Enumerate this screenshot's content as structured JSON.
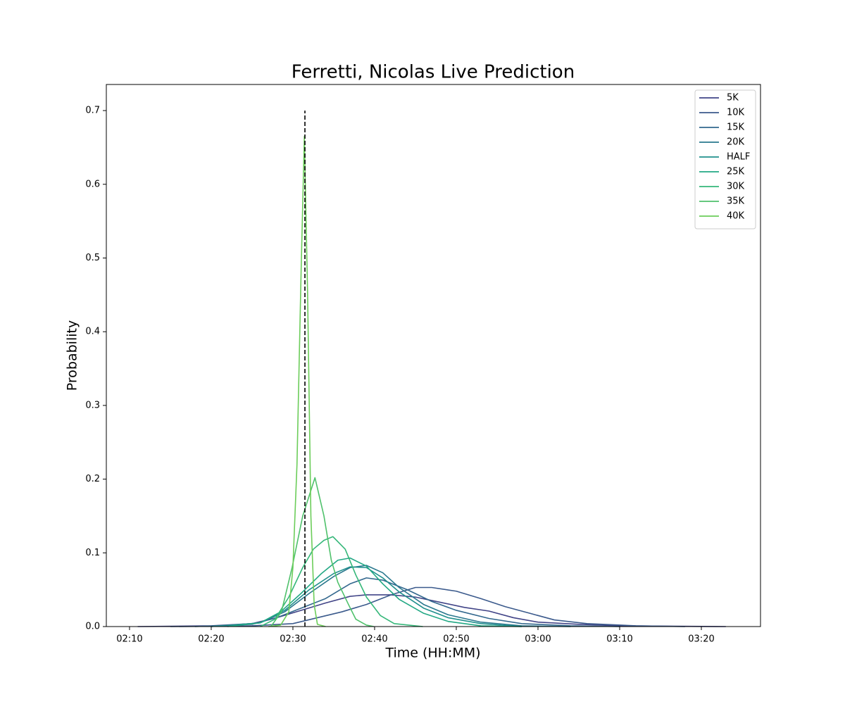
{
  "chart_data": {
    "type": "line",
    "title": "Ferretti, Nicolas Live Prediction",
    "xlabel": "Time (HH:MM)",
    "ylabel": "Probability",
    "xlim": [
      127.16,
      207.24
    ],
    "ylim": [
      0,
      0.7354
    ],
    "xticks": [
      {
        "value": 130,
        "label": "02:10"
      },
      {
        "value": 140,
        "label": "02:20"
      },
      {
        "value": 150,
        "label": "02:30"
      },
      {
        "value": 160,
        "label": "02:40"
      },
      {
        "value": 170,
        "label": "02:50"
      },
      {
        "value": 180,
        "label": "03:00"
      },
      {
        "value": 190,
        "label": "03:10"
      },
      {
        "value": 200,
        "label": "03:20"
      }
    ],
    "yticks": [
      {
        "value": 0,
        "label": "0.0"
      },
      0.1,
      0.2,
      0.3,
      0.4,
      0.5,
      0.6,
      0.7
    ],
    "vline": {
      "x": 151.47,
      "ymax": 0.7,
      "color": "#000000"
    },
    "legend": "upper right",
    "series": [
      {
        "name": "5K",
        "color": "#414487",
        "x": [
          131,
          140,
          145,
          148,
          151,
          154,
          157,
          159,
          162,
          165,
          168,
          171,
          174,
          177,
          180,
          185,
          190,
          203
        ],
        "values": [
          0,
          0.001,
          0.004,
          0.012,
          0.022,
          0.032,
          0.041,
          0.043,
          0.043,
          0.04,
          0.033,
          0.026,
          0.021,
          0.012,
          0.006,
          0.003,
          0.001,
          0
        ]
      },
      {
        "name": "10K",
        "color": "#3b5a8c",
        "x": [
          135,
          145,
          150,
          153,
          156,
          159,
          162,
          165,
          167,
          170,
          173,
          176,
          179,
          182,
          186,
          192,
          198
        ],
        "values": [
          0,
          0.001,
          0.004,
          0.012,
          0.02,
          0.03,
          0.043,
          0.053,
          0.053,
          0.048,
          0.038,
          0.027,
          0.018,
          0.009,
          0.004,
          0.001,
          0
        ]
      },
      {
        "name": "15K",
        "color": "#33688e",
        "x": [
          138,
          145,
          148,
          151,
          154,
          157,
          159,
          161,
          164,
          167,
          170,
          174,
          178,
          184,
          190
        ],
        "values": [
          0,
          0.003,
          0.012,
          0.025,
          0.038,
          0.058,
          0.066,
          0.063,
          0.05,
          0.034,
          0.022,
          0.011,
          0.004,
          0.001,
          0
        ]
      },
      {
        "name": "20K",
        "color": "#2a788e",
        "x": [
          140,
          146,
          149,
          152,
          155,
          157,
          159,
          161,
          163,
          166,
          169,
          173,
          178,
          184
        ],
        "values": [
          0,
          0.005,
          0.02,
          0.045,
          0.068,
          0.08,
          0.083,
          0.073,
          0.053,
          0.03,
          0.016,
          0.006,
          0.001,
          0
        ]
      },
      {
        "name": "HALF",
        "color": "#21908d",
        "x": [
          140,
          146,
          149,
          152,
          155,
          157,
          159,
          161,
          163,
          166,
          169,
          173,
          178
        ],
        "values": [
          0,
          0.005,
          0.022,
          0.05,
          0.072,
          0.081,
          0.08,
          0.066,
          0.047,
          0.025,
          0.012,
          0.004,
          0
        ]
      },
      {
        "name": "25K",
        "color": "#22a884",
        "x": [
          142,
          146,
          148.5,
          151,
          153.5,
          155.5,
          157,
          159,
          161,
          163,
          166,
          169,
          173,
          178
        ],
        "values": [
          0,
          0.005,
          0.02,
          0.045,
          0.072,
          0.09,
          0.093,
          0.082,
          0.058,
          0.037,
          0.018,
          0.007,
          0.001,
          0
        ]
      },
      {
        "name": "30K",
        "color": "#35b779",
        "x": [
          146,
          147.8,
          149.5,
          151.2,
          152.5,
          153.8,
          154.9,
          156.4,
          157.7,
          159,
          160.7,
          162.4,
          165.9
        ],
        "values": [
          0,
          0.01,
          0.04,
          0.08,
          0.105,
          0.117,
          0.122,
          0.105,
          0.07,
          0.04,
          0.015,
          0.004,
          0
        ]
      },
      {
        "name": "35K",
        "color": "#4fc16b",
        "x": [
          147.3,
          148.6,
          149.9,
          151.2,
          152.7,
          153.8,
          154.7,
          155.5,
          156.8,
          157.7,
          159,
          159.9
        ],
        "values": [
          0,
          0.02,
          0.08,
          0.15,
          0.202,
          0.15,
          0.09,
          0.06,
          0.03,
          0.01,
          0.002,
          0
        ]
      },
      {
        "name": "40K",
        "color": "#6ccd5a",
        "x": [
          147,
          148.5,
          149.5,
          150,
          150.5,
          151,
          151.4,
          151.8,
          152.2,
          152.6,
          153,
          154
        ],
        "values": [
          0,
          0.002,
          0.02,
          0.08,
          0.22,
          0.48,
          0.665,
          0.45,
          0.15,
          0.03,
          0.003,
          0
        ]
      }
    ]
  }
}
